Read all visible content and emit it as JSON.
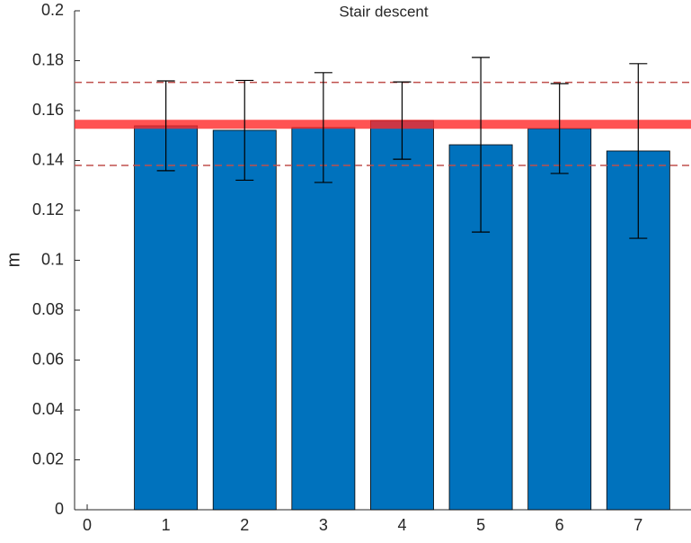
{
  "chart_data": {
    "type": "bar",
    "title": "Stair descent",
    "y_label": "m",
    "x": [
      1,
      2,
      3,
      4,
      5,
      6,
      7
    ],
    "values": [
      0.1539,
      0.1521,
      0.1532,
      0.156,
      0.1463,
      0.1528,
      0.1438
    ],
    "errors": [
      0.018,
      0.02,
      0.022,
      0.0155,
      0.035,
      0.018,
      0.035
    ],
    "color": "#0072bd",
    "error_color": "#000000",
    "reference_lines": [
      {
        "value": 0.1545,
        "style": "solid",
        "color": "rgba(255,40,40,0.8)"
      },
      {
        "value": 0.1713,
        "style": "dashed",
        "color": "#c0504d"
      },
      {
        "value": 0.138,
        "style": "dashed",
        "color": "#c0504d"
      }
    ],
    "xlim": [
      -0.16,
      7.67
    ],
    "xticks": [
      0,
      1,
      2,
      3,
      4,
      5,
      6,
      7
    ],
    "ylim": [
      0,
      0.2
    ],
    "yticks": [
      0,
      0.02,
      0.04,
      0.06,
      0.08,
      0.1,
      0.12,
      0.14,
      0.16,
      0.18,
      0.2
    ]
  }
}
